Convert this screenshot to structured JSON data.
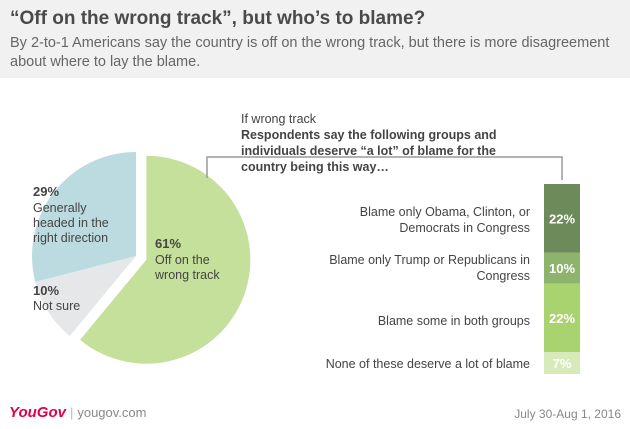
{
  "title": "“Off on the wrong track”, but who’s to blame?",
  "subtitle": "By 2-to-1 Americans say the country is off on the wrong track, but there is more disagreement about where to lay the blame.",
  "chart_data": [
    {
      "type": "pie",
      "slices": [
        {
          "label": "Off on the wrong track",
          "value": 61,
          "value_label": "61%",
          "color": "#c5e09a"
        },
        {
          "label": "Not sure",
          "value": 10,
          "value_label": "10%",
          "color": "#e6e7e8"
        },
        {
          "label": "Generally headed in the right direction",
          "value": 29,
          "value_label": "29%",
          "color": "#bcdbe0"
        }
      ]
    },
    {
      "type": "bar",
      "stacked": true,
      "heading": "If wrong track",
      "subheading": "Respondents say the following groups and individuals deserve “a lot” of blame for the country being this way…",
      "categories": [
        "Blame only Obama, Clinton, or Democrats in Congress",
        "Blame only Trump or Republicans in Congress",
        "Blame some in both groups",
        "None of these deserve a lot of blame"
      ],
      "values": [
        22,
        10,
        22,
        7
      ],
      "value_labels": [
        "22%",
        "10%",
        "22%",
        "7%"
      ],
      "colors": [
        "#6d8b5a",
        "#8eb36d",
        "#a8d36e",
        "#d7eab9"
      ]
    }
  ],
  "footer": {
    "logo": "YouGov",
    "site": "yougov.com",
    "date": "July 30-Aug 1, 2016"
  }
}
